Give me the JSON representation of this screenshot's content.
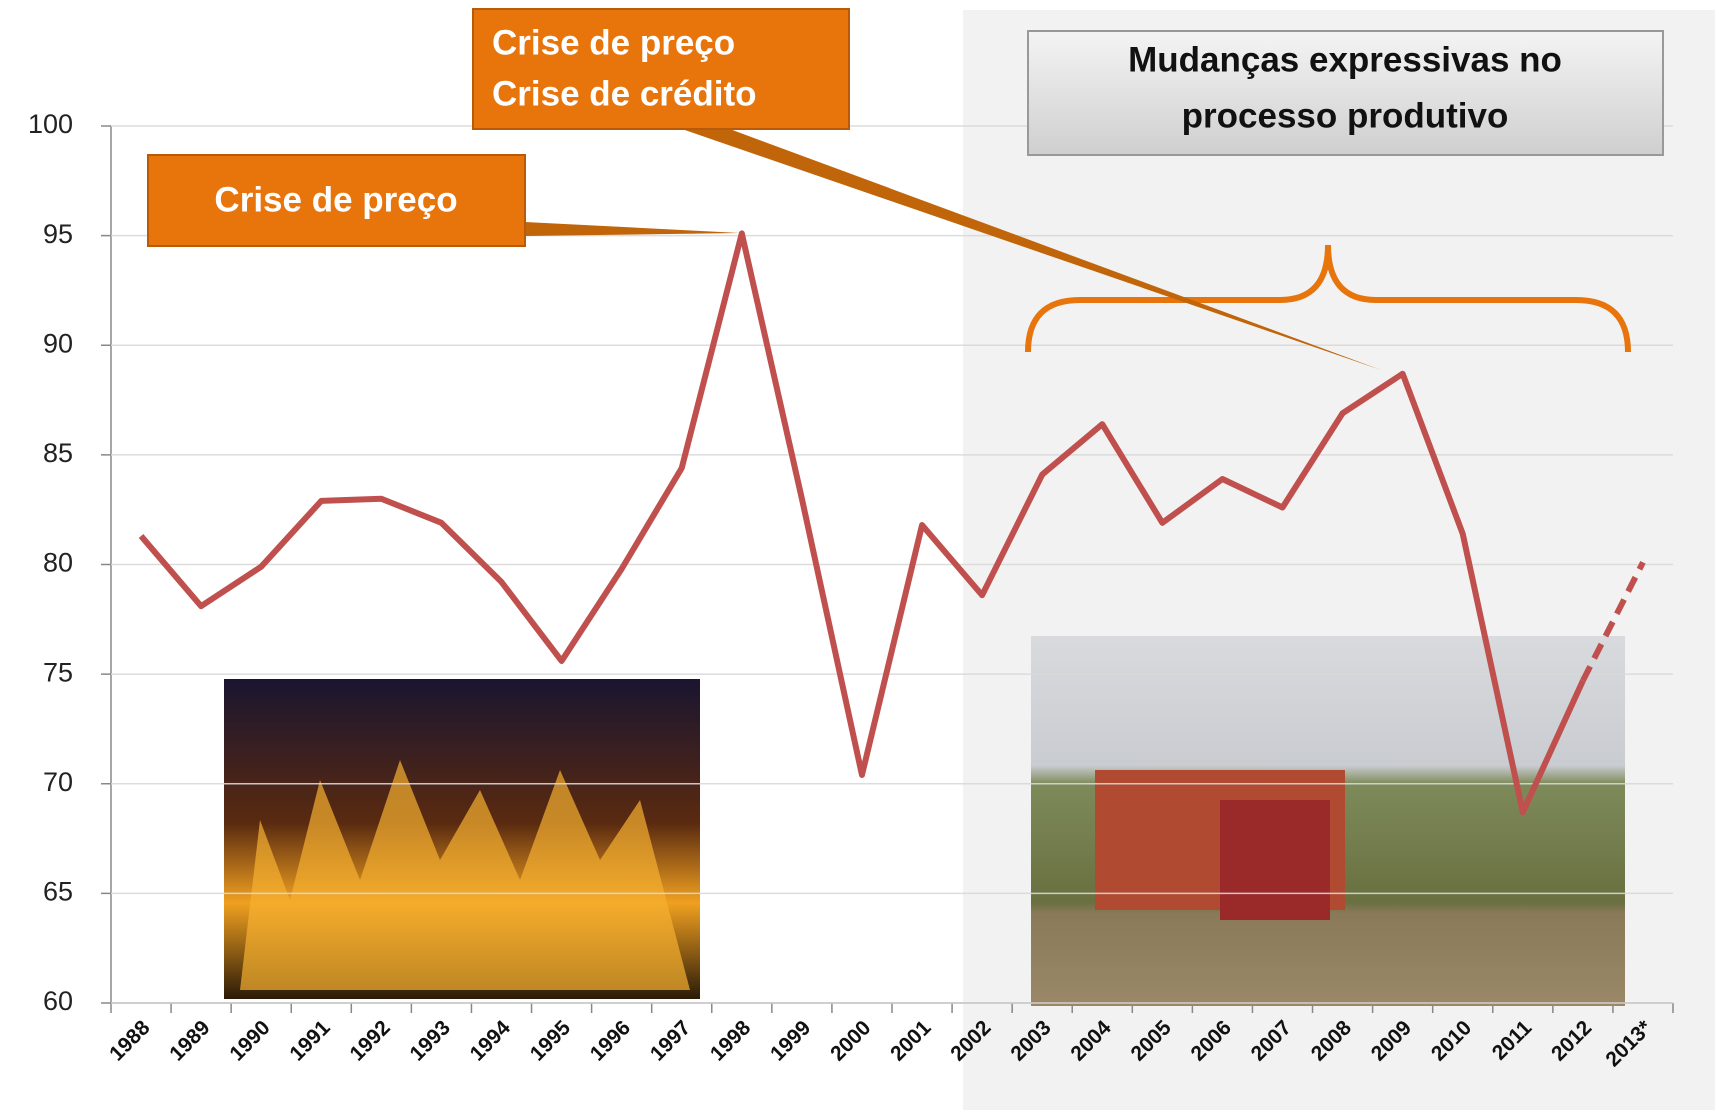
{
  "chart_data": {
    "type": "line",
    "categories": [
      "1988",
      "1989",
      "1990",
      "1991",
      "1992",
      "1993",
      "1994",
      "1995",
      "1996",
      "1997",
      "1998",
      "1999",
      "2000",
      "2001",
      "2002",
      "2003",
      "2004",
      "2005",
      "2006",
      "2007",
      "2008",
      "2009",
      "2010",
      "2011",
      "2012",
      "2013*"
    ],
    "series": [
      {
        "color": "#c0504d",
        "dashed": false,
        "values": [
          81.3,
          78.1,
          79.9,
          82.9,
          83.0,
          81.9,
          79.2,
          75.6,
          79.8,
          84.4,
          95.1,
          83.0,
          70.4,
          81.8,
          78.6,
          84.1,
          86.4,
          81.9,
          83.9,
          82.6,
          86.9,
          88.7,
          81.4,
          68.7,
          74.7,
          null
        ]
      },
      {
        "color": "#c0504d",
        "dashed": true,
        "values": [
          null,
          null,
          null,
          null,
          null,
          null,
          null,
          null,
          null,
          null,
          null,
          null,
          null,
          null,
          null,
          null,
          null,
          null,
          null,
          null,
          null,
          null,
          null,
          null,
          74.7,
          80.1
        ]
      }
    ],
    "ylim": [
      60,
      100
    ],
    "yticks": [
      60,
      65,
      70,
      75,
      80,
      85,
      90,
      95,
      100
    ],
    "grid": true,
    "annotations": [
      {
        "lines": [
          "Crise de preço"
        ]
      },
      {
        "lines": [
          "Crise de preço",
          "Crise de crédito"
        ]
      },
      {
        "lines": [
          "Mudanças expressivas no",
          "processo produtivo"
        ]
      }
    ]
  }
}
